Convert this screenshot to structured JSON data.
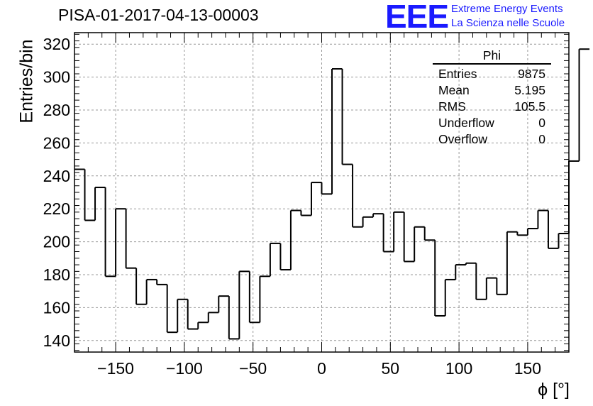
{
  "title": "PISA-01-2017-04-13-00003",
  "logo": {
    "mark": "EEE",
    "line1": "Extreme Energy Events",
    "line2": "La Scienza nelle Scuole",
    "color": "#1a1aff"
  },
  "stats_box": {
    "name": "Phi",
    "rows": [
      {
        "label": "Entries",
        "value": "9875"
      },
      {
        "label": "Mean",
        "value": "5.195"
      },
      {
        "label": "RMS",
        "value": "105.5"
      },
      {
        "label": "Underflow",
        "value": "0"
      },
      {
        "label": "Overflow",
        "value": "0"
      }
    ]
  },
  "chart_data": {
    "type": "histogram",
    "title": "PISA-01-2017-04-13-00003",
    "xlabel": "ϕ [°]",
    "ylabel": "Entries/bin",
    "xlim": [
      -180,
      180
    ],
    "ylim": [
      133,
      327
    ],
    "grid": true,
    "x_ticks": [
      -150,
      -100,
      -50,
      0,
      50,
      100,
      150
    ],
    "x_tick_labels": [
      "−150",
      "−100",
      "−50",
      "0",
      "50",
      "100",
      "150"
    ],
    "y_ticks": [
      140,
      160,
      180,
      200,
      220,
      240,
      260,
      280,
      300,
      320
    ],
    "bin_edges_start": -180,
    "bin_width": 7.5,
    "values": [
      244,
      213,
      233,
      179,
      220,
      184,
      162,
      177,
      174,
      145,
      165,
      147,
      151,
      157,
      167,
      141,
      182,
      151,
      179,
      199,
      183,
      219,
      216,
      236,
      229,
      305,
      247,
      209,
      215,
      217,
      194,
      218,
      188,
      209,
      201,
      155,
      177,
      186,
      187,
      165,
      178,
      168,
      206,
      204,
      208,
      219,
      196,
      205,
      249,
      317
    ]
  }
}
